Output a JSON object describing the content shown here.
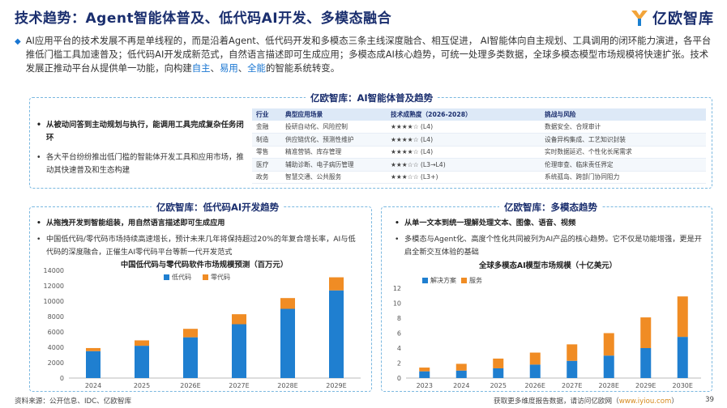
{
  "header": {
    "title": "技术趋势：Agent智能体普及、低代码AI开发、多模态融合",
    "logo_text": "亿欧智库"
  },
  "intro": {
    "part1": "AI应用平台的技术发展不再是单线程的，而是沿着Agent、低代码开发和多模态三条主线深度融合、相互促进， AI智能体向自主规划、工具调用的闭环能力演进，各平台推低门槛工具加速普及；低代码AI开发成新范式，自然语言描述即可生成应用；多模态成AI核心趋势，可统一处理多类数据，全球多模态模型市场规模将快速扩张。技术发展正推动平台从提供单一功能，向构建",
    "hl1": "自主",
    "sep1": "、",
    "hl2": "易用",
    "sep2": "、",
    "hl3": "全能",
    "part2": "的智能系统转变。"
  },
  "agent_panel": {
    "title": "亿欧智库：AI智能体普及趋势",
    "bullets": [
      "从被动问答到主动规划与执行，能调用工具完成复杂任务闭环",
      "各大平台纷纷推出低门槛的智能体开发工具和应用市场，推动其快速普及和生态构建"
    ],
    "table": {
      "headers": [
        "行业",
        "典型应用场景",
        "技术成熟度（2026-2028）",
        "挑战与风险"
      ],
      "rows": [
        [
          "金融",
          "投研自动化、风险控制",
          "★★★★☆ (L4)",
          "数据安全、合规审计"
        ],
        [
          "制造",
          "供应链优化、预测性维护",
          "★★★★☆ (L4)",
          "设备异构集成、工艺知识封装"
        ],
        [
          "零售",
          "精准营销、库存管理",
          "★★★★☆ (L4)",
          "实时数据延迟、个性化长尾需求"
        ],
        [
          "医疗",
          "辅助诊断、电子病历管理",
          "★★★☆☆ (L3→L4)",
          "伦理审查、临床责任界定"
        ],
        [
          "政务",
          "智慧交通、公共服务",
          "★★★☆☆ (L3+)",
          "系统孤岛、跨部门协同阻力"
        ]
      ]
    }
  },
  "lowcode_panel": {
    "title": "亿欧智库：低代码AI开发趋势",
    "bullets": [
      "从拖拽开发到智能组装，用自然语言描述即可生成应用",
      "中国低代码/零代码市场持续高速增长，预计未来几年将保持超过20%的年复合增长率，AI与低代码的深度融合，正催生AI零代码平台等新一代开发范式"
    ]
  },
  "multimodal_panel": {
    "title": "亿欧智库：多模态趋势",
    "bullets": [
      "从单一文本到统一理解处理文本、图像、语音、视频",
      "多模态与Agent化、高度个性化共同被列为AI产品的核心趋势。它不仅是功能增强，更是开启全新交互体验的基础"
    ]
  },
  "chart_data": [
    {
      "type": "bar",
      "stacked": true,
      "title": "中国低代码与零代码软件市场规模预测（百万元）",
      "categories": [
        "2024",
        "2025",
        "2026E",
        "2027E",
        "2028E",
        "2029E"
      ],
      "series": [
        {
          "name": "低代码",
          "color": "#1f7fd0",
          "values": [
            3500,
            4200,
            5300,
            7000,
            9000,
            11400
          ]
        },
        {
          "name": "零代码",
          "color": "#f08c24",
          "values": [
            400,
            700,
            1100,
            1300,
            1400,
            1700
          ]
        }
      ],
      "ylim": [
        0,
        14000
      ],
      "yticks": [
        0,
        2000,
        4000,
        6000,
        8000,
        10000,
        12000,
        14000
      ],
      "legend": "top-left"
    },
    {
      "type": "bar",
      "stacked": true,
      "title": "全球多模态AI模型市场规模（十亿美元）",
      "categories": [
        "2023",
        "2024",
        "2025",
        "2026E",
        "2027E",
        "2028E",
        "2029E",
        "2030E"
      ],
      "series": [
        {
          "name": "解决方案",
          "color": "#1f7fd0",
          "values": [
            0.9,
            1.0,
            1.3,
            1.8,
            2.3,
            3.0,
            4.0,
            5.5
          ]
        },
        {
          "name": "服务",
          "color": "#f08c24",
          "values": [
            0.5,
            0.9,
            1.3,
            1.6,
            2.2,
            3.0,
            4.1,
            5.4
          ]
        }
      ],
      "ylim": [
        0,
        12
      ],
      "yticks": [
        0,
        2,
        4,
        6,
        8,
        10,
        12
      ],
      "legend": "top-left"
    }
  ],
  "footer": {
    "source": "资料来源：公开信息、IDC、亿欧智库",
    "promo": "获取更多维度报告数据，请访问亿欧网（",
    "link": "www.iyiou.com",
    "promo_end": "）",
    "page": "39"
  },
  "colors": {
    "title": "#1a2e6e",
    "accent": "#1976d2",
    "blue": "#1f7fd0",
    "orange": "#f08c24"
  }
}
